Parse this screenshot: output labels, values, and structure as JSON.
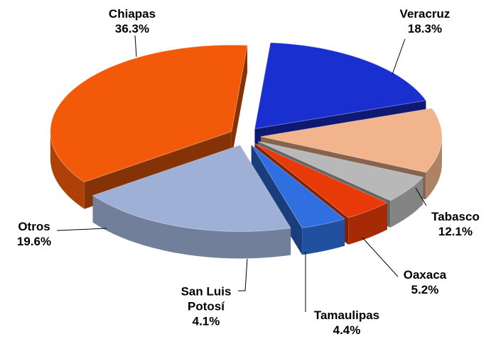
{
  "chart_data": {
    "type": "pie3d",
    "categories": [
      "Veracruz",
      "Tabasco",
      "Oaxaca",
      "Tamaulipas",
      "San Luis Potosí",
      "Otros",
      "Chiapas"
    ],
    "values": [
      18.3,
      12.1,
      5.2,
      4.4,
      4.1,
      19.6,
      36.3
    ],
    "value_labels": [
      "18.3%",
      "12.1%",
      "5.2%",
      "4.4%",
      "4.1%",
      "19.6%",
      "36.3%"
    ],
    "colors": [
      "#1a2fd0",
      "#f2b48c",
      "#b8b8b8",
      "#e83a08",
      "#2f6fe0",
      "#9fb0d6",
      "#f25a0a"
    ]
  }
}
